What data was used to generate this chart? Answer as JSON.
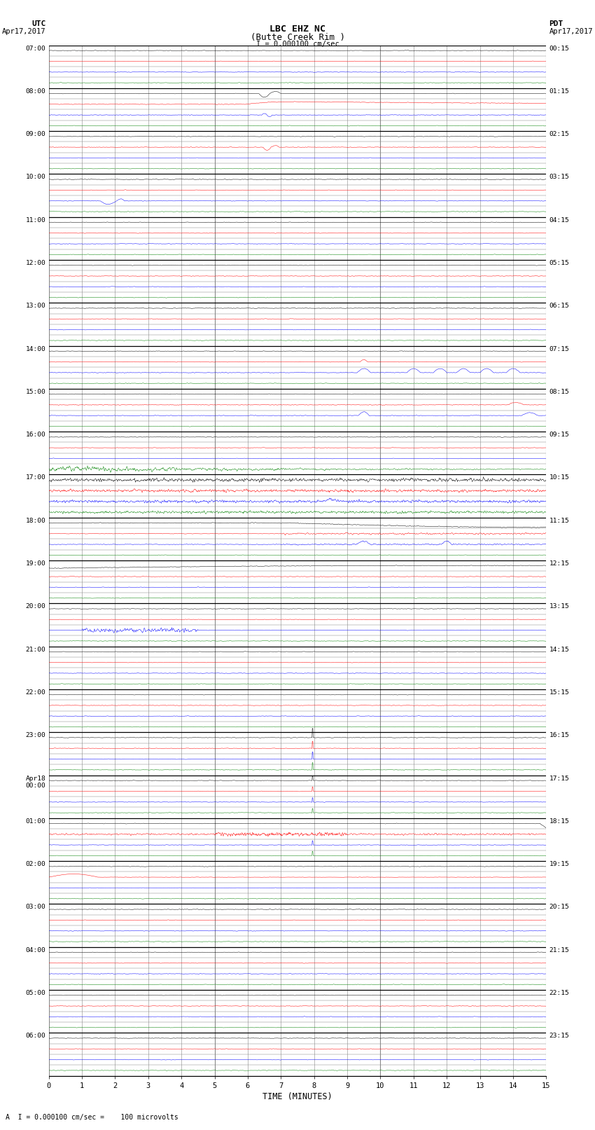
{
  "title_line1": "LBC EHZ NC",
  "title_line2": "(Butte Creek Rim )",
  "title_scale": "I = 0.000100 cm/sec",
  "utc_label": "UTC",
  "utc_date": "Apr17,2017",
  "pdt_label": "PDT",
  "pdt_date": "Apr17,2017",
  "xlabel": "TIME (MINUTES)",
  "footer": "A  I = 0.000100 cm/sec =    100 microvolts",
  "bg_color": "#ffffff",
  "grid_color": "#888888",
  "hour_grid_color": "#000000",
  "num_hours": 24,
  "traces_per_hour": 4,
  "minutes_per_row": 15,
  "colors_cycle": [
    "black",
    "red",
    "blue",
    "green"
  ],
  "utc_hour_labels": [
    "07:00",
    "08:00",
    "09:00",
    "10:00",
    "11:00",
    "12:00",
    "13:00",
    "14:00",
    "15:00",
    "16:00",
    "17:00",
    "18:00",
    "19:00",
    "20:00",
    "21:00",
    "22:00",
    "23:00",
    "Apr18\n00:00",
    "01:00",
    "02:00",
    "03:00",
    "04:00",
    "05:00",
    "06:00"
  ],
  "pdt_hour_labels": [
    "00:15",
    "01:15",
    "02:15",
    "03:15",
    "04:15",
    "05:15",
    "06:15",
    "07:15",
    "08:15",
    "09:15",
    "10:15",
    "11:15",
    "12:15",
    "13:15",
    "14:15",
    "15:15",
    "16:15",
    "17:15",
    "18:15",
    "19:15",
    "20:15",
    "21:15",
    "22:15",
    "23:15"
  ]
}
